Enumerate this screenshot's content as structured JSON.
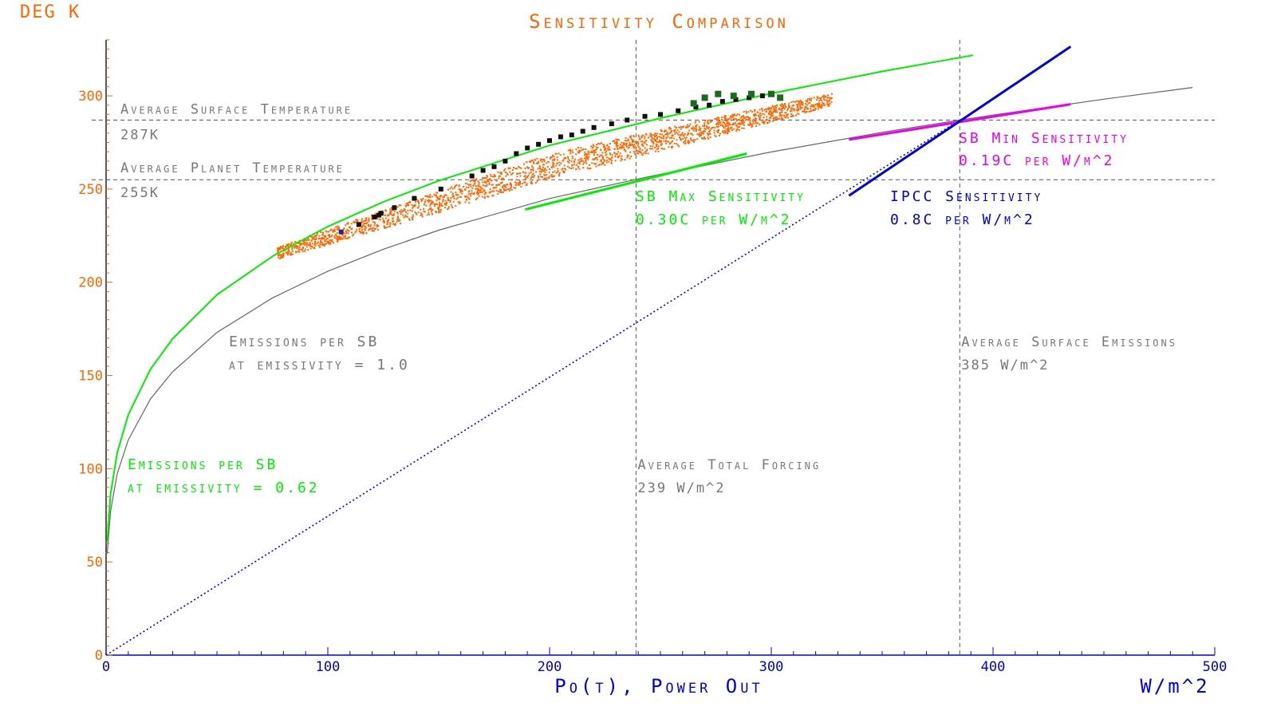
{
  "chart_data": {
    "type": "line",
    "title": "Sensitivity Comparison",
    "xlabel": "Po(t), Power Out",
    "xunit": "W/m^2",
    "ylabel_unit": "DEG K",
    "xlim": [
      0,
      500
    ],
    "ylim": [
      0,
      330
    ],
    "x_ticks": [
      0,
      100,
      200,
      300,
      400,
      500
    ],
    "y_ticks": [
      0,
      50,
      100,
      150,
      200,
      250,
      300
    ],
    "grid": false,
    "reference_lines": {
      "avg_surface_temp": {
        "value": 287,
        "line1": "Average Surface Temperature",
        "line2": "287K"
      },
      "avg_planet_temp": {
        "value": 255,
        "line1": "Average Planet Temperature",
        "line2": "255K"
      },
      "avg_total_forcing": {
        "value": 239,
        "line1": "Average Total Forcing",
        "line2": "239 W/m^2"
      },
      "avg_surface_emissions": {
        "value": 385,
        "line1": "Average Surface Emissions",
        "line2": "385 W/m^2"
      }
    },
    "series": [
      {
        "key": "sb10",
        "x": [
          0.5,
          2,
          5,
          10,
          20,
          30,
          50,
          75,
          100,
          125,
          150,
          200,
          239,
          250,
          300,
          350,
          385,
          400,
          450,
          490
        ],
        "y": [
          54.5,
          77.1,
          97.2,
          115.4,
          137.4,
          152.0,
          173.1,
          191.6,
          205.9,
          217.7,
          227.9,
          244.9,
          255.2,
          257.9,
          269.9,
          280.4,
          287.0,
          289.7,
          298.2,
          304.5
        ]
      },
      {
        "key": "sb062",
        "x": [
          0.5,
          2,
          5,
          10,
          20,
          30,
          50,
          75,
          100,
          125,
          150,
          200,
          250,
          300,
          350,
          391
        ],
        "y": [
          61.0,
          86.3,
          108.4,
          128.9,
          153.3,
          169.7,
          193.3,
          213.9,
          229.9,
          243.1,
          254.4,
          273.4,
          288.0,
          301.3,
          313.1,
          321.8
        ]
      }
    ],
    "sensitivity_lines": {
      "sb_max": {
        "label": "SB Max Sensitivity",
        "value": "0.30C per W/m^2",
        "x": [
          189,
          289
        ],
        "y": [
          239.0,
          269.0
        ],
        "color": "#00ee00"
      },
      "sb_min": {
        "label": "SB Min Sensitivity",
        "value": "0.19C per W/m^2",
        "x": [
          335,
          435
        ],
        "y": [
          276.5,
          295.5
        ],
        "color": "#ee00ee"
      },
      "ipcc": {
        "label": "IPCC Sensitivity",
        "value": "0.8C per W/m^2",
        "x": [
          335,
          435
        ],
        "y": [
          246.4,
          326.4
        ],
        "color": "#0000dd"
      },
      "ipcc_origin": {
        "x": [
          0,
          385
        ],
        "y": [
          0,
          287
        ],
        "color": "#0000dd",
        "dotted": true
      }
    },
    "scatter_cloud": {
      "color": "#ff6600",
      "x_range": [
        77,
        327
      ]
    },
    "black_points": {
      "x": [
        106,
        114,
        121,
        123,
        124,
        130,
        139,
        151,
        165,
        170,
        175,
        180,
        185,
        190,
        195,
        200,
        205,
        210,
        215,
        220,
        228,
        235,
        243,
        250,
        258,
        266,
        272,
        278,
        284,
        290,
        296
      ],
      "y": [
        227,
        231,
        235,
        236,
        237,
        240,
        245,
        250,
        257,
        260,
        262,
        265,
        269,
        272,
        274,
        276,
        278,
        279,
        281,
        283,
        285,
        287,
        289,
        290,
        292,
        294,
        295,
        297,
        298,
        299,
        300
      ]
    },
    "green_points": {
      "x": [
        265,
        270,
        276,
        283,
        291,
        300,
        304
      ],
      "y": [
        296,
        299,
        301,
        300,
        301,
        301,
        299
      ]
    },
    "annotations": {
      "sb10": {
        "line1": "Emissions per SB",
        "line2": "at emissivity = 1.0",
        "color": "#777777"
      },
      "sb062": {
        "line1": "Emissions per SB",
        "line2": "at emissivity = 0.62",
        "color": "#00ee00"
      }
    },
    "colors": {
      "axis_text": "#ff6600",
      "x_axis": "#0000dd",
      "ref_text": "#777777",
      "sb10": "#666666",
      "sb062": "#00ee00"
    }
  }
}
